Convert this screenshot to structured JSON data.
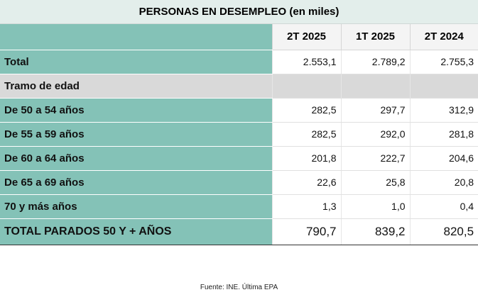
{
  "header": {
    "title": "PERSONAS EN DESEMPLEO (en miles)"
  },
  "table": {
    "columns": [
      "2T 2025",
      "1T 2025",
      "2T 2024"
    ],
    "rows": [
      [
        "Total",
        "2.553,1",
        "2.789,2",
        "2.755,3"
      ],
      [
        "Tramo de edad"
      ],
      [
        "De 50 a 54 años",
        "282,5",
        "297,7",
        "312,9"
      ],
      [
        "De 55 a 59 años",
        "282,5",
        "292,0",
        "281,8"
      ],
      [
        "De 60 a 64 años",
        "201,8",
        "222,7",
        "204,6"
      ],
      [
        "De 65 a 69 años",
        "22,6",
        "25,8",
        "20,8"
      ],
      [
        "70 y más años",
        "1,3",
        "1,0",
        "0,4"
      ],
      [
        "TOTAL PARADOS 50 Y + AÑOS",
        "790,7",
        "839,2",
        "820,5"
      ]
    ]
  },
  "footer": {
    "source": "Fuente: INE. Última EPA"
  }
}
